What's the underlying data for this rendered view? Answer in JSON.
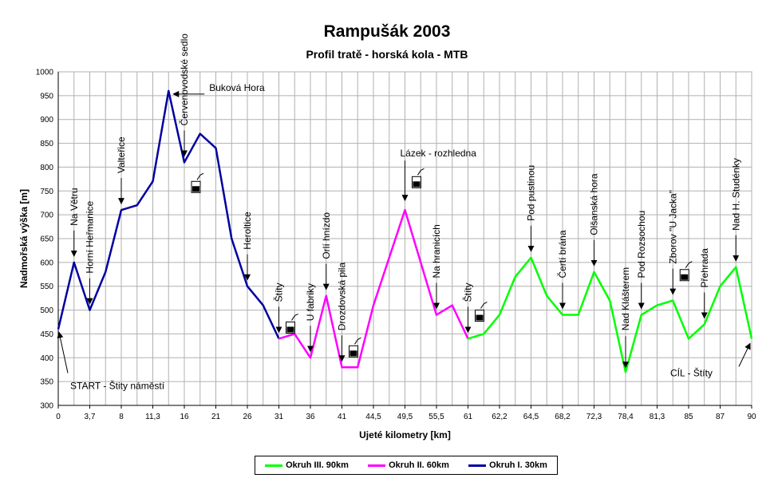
{
  "chart_data": {
    "type": "line",
    "title": "Rampušák 2003",
    "subtitle": "Profil tratě - horská kola - MTB",
    "xlabel": "Ujeté kilometry [km]",
    "ylabel": "Nadmořská výška [m]",
    "ylim": [
      300,
      1000
    ],
    "y_ticks": [
      300,
      350,
      400,
      450,
      500,
      550,
      600,
      650,
      700,
      750,
      800,
      850,
      900,
      950,
      1000
    ],
    "x_tick_labels": [
      "0",
      "3,7",
      "8",
      "11,3",
      "16",
      "21",
      "26",
      "31",
      "36",
      "41",
      "44,5",
      "49,5",
      "55,5",
      "61",
      "62,2",
      "64,5",
      "68,2",
      "72,3",
      "78,4",
      "81,3",
      "85",
      "87",
      "90"
    ],
    "grid": true,
    "legend_position": "bottom",
    "series": [
      {
        "name": "Okruh I. 30km",
        "color": "#0000a0",
        "points": [
          [
            0,
            460
          ],
          [
            1,
            600
          ],
          [
            2,
            500
          ],
          [
            3,
            580
          ],
          [
            4,
            710
          ],
          [
            5,
            720
          ],
          [
            6,
            770
          ],
          [
            7,
            960
          ],
          [
            8,
            810
          ],
          [
            9,
            870
          ],
          [
            10,
            840
          ],
          [
            11,
            650
          ],
          [
            12,
            550
          ],
          [
            13,
            510
          ],
          [
            14,
            440
          ]
        ]
      },
      {
        "name": "Okruh II. 60km",
        "color": "#ff00ff",
        "points": [
          [
            14,
            440
          ],
          [
            15,
            450
          ],
          [
            16,
            400
          ],
          [
            17,
            530
          ],
          [
            18,
            380
          ],
          [
            19,
            380
          ],
          [
            20,
            510
          ],
          [
            21,
            610
          ],
          [
            22,
            710
          ],
          [
            23,
            600
          ],
          [
            24,
            490
          ],
          [
            25,
            510
          ],
          [
            26,
            440
          ]
        ]
      },
      {
        "name": "Okruh III. 90km",
        "color": "#00ff00",
        "points": [
          [
            26,
            440
          ],
          [
            27,
            450
          ],
          [
            28,
            490
          ],
          [
            29,
            570
          ],
          [
            30,
            610
          ],
          [
            31,
            530
          ],
          [
            32,
            490
          ],
          [
            33,
            490
          ],
          [
            34,
            580
          ],
          [
            35,
            520
          ],
          [
            36,
            370
          ],
          [
            37,
            490
          ],
          [
            38,
            510
          ],
          [
            39,
            520
          ],
          [
            40,
            440
          ],
          [
            41,
            470
          ],
          [
            42,
            550
          ],
          [
            43,
            590
          ],
          [
            44,
            440
          ]
        ]
      }
    ],
    "annotations": [
      {
        "text": "START - Štity  náměstí",
        "x": 0,
        "y": 460,
        "rotate": false
      },
      {
        "text": "Na Větru",
        "x": 1,
        "y": 600,
        "rotate": true
      },
      {
        "text": "Horní Heřmanice",
        "x": 2,
        "y": 500,
        "rotate": true
      },
      {
        "text": "Valteřice",
        "x": 4,
        "y": 710,
        "rotate": true
      },
      {
        "text": "Buková Hora",
        "x": 7,
        "y": 960,
        "rotate": false
      },
      {
        "text": "Červenovodské sedlo",
        "x": 8,
        "y": 810,
        "rotate": true
      },
      {
        "text": "Heroltice",
        "x": 12,
        "y": 550,
        "rotate": true
      },
      {
        "text": "Štíty",
        "x": 14,
        "y": 440,
        "rotate": true
      },
      {
        "text": "U fabriky",
        "x": 16,
        "y": 400,
        "rotate": true
      },
      {
        "text": "Orlí hnízdo",
        "x": 17,
        "y": 530,
        "rotate": true
      },
      {
        "text": "Drozdovská pila",
        "x": 18,
        "y": 380,
        "rotate": true
      },
      {
        "text": "Lázek - rozhledna",
        "x": 22,
        "y": 710,
        "rotate": false
      },
      {
        "text": "Na hranicích",
        "x": 24,
        "y": 490,
        "rotate": true
      },
      {
        "text": "Štíty",
        "x": 26,
        "y": 440,
        "rotate": true
      },
      {
        "text": "Pod pustinou",
        "x": 30,
        "y": 610,
        "rotate": true
      },
      {
        "text": "Čertí brána",
        "x": 32,
        "y": 490,
        "rotate": true
      },
      {
        "text": "Olšanská hora",
        "x": 34,
        "y": 580,
        "rotate": true
      },
      {
        "text": "Nad Klášterem",
        "x": 36,
        "y": 370,
        "rotate": true
      },
      {
        "text": "Pod Rozsochou",
        "x": 37,
        "y": 490,
        "rotate": true
      },
      {
        "text": "Zborov \"U Jacka\"",
        "x": 39,
        "y": 520,
        "rotate": true
      },
      {
        "text": "Přehrada",
        "x": 41,
        "y": 470,
        "rotate": true
      },
      {
        "text": "Nad H. Studénky",
        "x": 43,
        "y": 590,
        "rotate": true
      },
      {
        "text": "CÍL - Štíty",
        "x": 44,
        "y": 440,
        "rotate": false
      }
    ],
    "drink_icons": [
      [
        8,
        750
      ],
      [
        14,
        455
      ],
      [
        18,
        405
      ],
      [
        22,
        760
      ],
      [
        26,
        480
      ],
      [
        39,
        565
      ]
    ]
  },
  "legend": [
    {
      "label": "Okruh III. 90km",
      "color": "#00ff00"
    },
    {
      "label": "Okruh II. 60km",
      "color": "#ff00ff"
    },
    {
      "label": "Okruh I. 30km",
      "color": "#0000a0"
    }
  ]
}
